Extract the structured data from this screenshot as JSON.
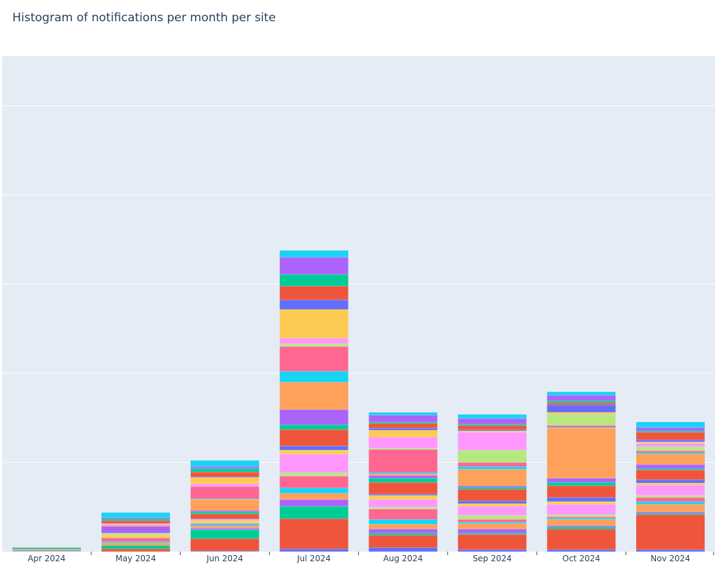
{
  "chart_data": {
    "type": "bar",
    "barmode": "stack",
    "title": "Histogram of notifications per month per site",
    "xlabel": "",
    "ylabel": "",
    "note": "Y tick labels are clipped off the left edge; values are relative estimates on a scale with gridlines every 130 units",
    "ylim": [
      0,
      722
    ],
    "ytick_step": 130,
    "grid": true,
    "palette": {
      "B": "#636efa",
      "R": "#EF553B",
      "G": "#00cc96",
      "P": "#ab63fa",
      "O": "#FFA15A",
      "C": "#19d3f3",
      "K": "#FF6692",
      "L": "#B6E880",
      "M": "#FF97FF",
      "Y": "#FECB52"
    },
    "categories": [
      "Apr 2024",
      "May 2024",
      "Jun 2024",
      "Jul 2024",
      "Aug 2024",
      "Sep 2024",
      "Oct 2024",
      "Nov 2024"
    ],
    "stacks": [
      [
        [
          "C",
          1
        ],
        [
          "K",
          1
        ],
        [
          "R",
          1
        ],
        [
          "O",
          1
        ],
        [
          "G",
          2
        ]
      ],
      [
        [
          "R",
          4
        ],
        [
          "G",
          5
        ],
        [
          "O",
          4
        ],
        [
          "C",
          2
        ],
        [
          "K",
          5
        ],
        [
          "Y",
          4
        ],
        [
          "L",
          3
        ],
        [
          "P",
          10
        ],
        [
          "O",
          2
        ],
        [
          "M",
          2
        ],
        [
          "R",
          4
        ],
        [
          "G",
          3
        ],
        [
          "P",
          2
        ],
        [
          "C",
          7
        ]
      ],
      [
        [
          "B",
          1
        ],
        [
          "R",
          18
        ],
        [
          "G",
          13
        ],
        [
          "P",
          2
        ],
        [
          "O",
          3
        ],
        [
          "C",
          2
        ],
        [
          "K",
          2
        ],
        [
          "L",
          2
        ],
        [
          "M",
          1
        ],
        [
          "Y",
          3
        ],
        [
          "B",
          1
        ],
        [
          "R",
          7
        ],
        [
          "G",
          3
        ],
        [
          "P",
          2
        ],
        [
          "O",
          16
        ],
        [
          "C",
          1
        ],
        [
          "K",
          18
        ],
        [
          "M",
          4
        ],
        [
          "Y",
          9
        ],
        [
          "B",
          1
        ],
        [
          "R",
          7
        ],
        [
          "G",
          5
        ],
        [
          "P",
          3
        ],
        [
          "C",
          9
        ]
      ],
      [
        [
          "B",
          4
        ],
        [
          "R",
          44
        ],
        [
          "G",
          18
        ],
        [
          "P",
          10
        ],
        [
          "O",
          9
        ],
        [
          "C",
          8
        ],
        [
          "K",
          17
        ],
        [
          "L",
          5
        ],
        [
          "M",
          27
        ],
        [
          "Y",
          6
        ],
        [
          "B",
          6
        ],
        [
          "R",
          24
        ],
        [
          "G",
          7
        ],
        [
          "P",
          22
        ],
        [
          "O",
          40
        ],
        [
          "C",
          16
        ],
        [
          "K",
          36
        ],
        [
          "L",
          4
        ],
        [
          "M",
          8
        ],
        [
          "Y",
          42
        ],
        [
          "B",
          14
        ],
        [
          "R",
          20
        ],
        [
          "G",
          17
        ],
        [
          "P",
          25
        ],
        [
          "C",
          10
        ]
      ],
      [
        [
          "B",
          6
        ],
        [
          "R",
          18
        ],
        [
          "G",
          3
        ],
        [
          "P",
          6
        ],
        [
          "O",
          7
        ],
        [
          "C",
          7
        ],
        [
          "K",
          15
        ],
        [
          "L",
          3
        ],
        [
          "M",
          11
        ],
        [
          "Y",
          6
        ],
        [
          "B",
          2
        ],
        [
          "R",
          17
        ],
        [
          "G",
          6
        ],
        [
          "P",
          4
        ],
        [
          "O",
          2
        ],
        [
          "C",
          2
        ],
        [
          "K",
          34
        ],
        [
          "L",
          2
        ],
        [
          "M",
          16
        ],
        [
          "Y",
          10
        ],
        [
          "B",
          3
        ],
        [
          "R",
          7
        ],
        [
          "G",
          2
        ],
        [
          "P",
          10
        ],
        [
          "C",
          4
        ]
      ],
      [
        [
          "B",
          3
        ],
        [
          "R",
          22
        ],
        [
          "G",
          2
        ],
        [
          "P",
          6
        ],
        [
          "O",
          8
        ],
        [
          "C",
          2
        ],
        [
          "K",
          4
        ],
        [
          "L",
          6
        ],
        [
          "M",
          13
        ],
        [
          "Y",
          4
        ],
        [
          "B",
          4
        ],
        [
          "R",
          17
        ],
        [
          "G",
          3
        ],
        [
          "P",
          2
        ],
        [
          "O",
          24
        ],
        [
          "C",
          4
        ],
        [
          "K",
          6
        ],
        [
          "L",
          18
        ],
        [
          "M",
          26
        ],
        [
          "Y",
          2
        ],
        [
          "B",
          2
        ],
        [
          "R",
          6
        ],
        [
          "G",
          2
        ],
        [
          "P",
          8
        ],
        [
          "C",
          6
        ]
      ],
      [
        [
          "B",
          3
        ],
        [
          "R",
          30
        ],
        [
          "G",
          3
        ],
        [
          "P",
          2
        ],
        [
          "O",
          9
        ],
        [
          "C",
          2
        ],
        [
          "K",
          2
        ],
        [
          "L",
          3
        ],
        [
          "M",
          15
        ],
        [
          "Y",
          4
        ],
        [
          "B",
          6
        ],
        [
          "R",
          17
        ],
        [
          "G",
          5
        ],
        [
          "P",
          6
        ],
        [
          "O",
          73
        ],
        [
          "C",
          1
        ],
        [
          "K",
          3
        ],
        [
          "L",
          16
        ],
        [
          "Y",
          3
        ],
        [
          "B",
          11
        ],
        [
          "R",
          3
        ],
        [
          "G",
          3
        ],
        [
          "P",
          8
        ],
        [
          "C",
          5
        ]
      ],
      [
        [
          "B",
          3
        ],
        [
          "R",
          51
        ],
        [
          "G",
          2
        ],
        [
          "P",
          2
        ],
        [
          "O",
          11
        ],
        [
          "C",
          4
        ],
        [
          "K",
          6
        ],
        [
          "L",
          3
        ],
        [
          "M",
          15
        ],
        [
          "Y",
          3
        ],
        [
          "B",
          5
        ],
        [
          "R",
          14
        ],
        [
          "G",
          2
        ],
        [
          "P",
          6
        ],
        [
          "O",
          15
        ],
        [
          "C",
          2
        ],
        [
          "K",
          3
        ],
        [
          "L",
          6
        ],
        [
          "M",
          5
        ],
        [
          "Y",
          2
        ],
        [
          "B",
          3
        ],
        [
          "R",
          11
        ],
        [
          "G",
          2
        ],
        [
          "P",
          5
        ],
        [
          "C",
          8
        ]
      ]
    ]
  }
}
